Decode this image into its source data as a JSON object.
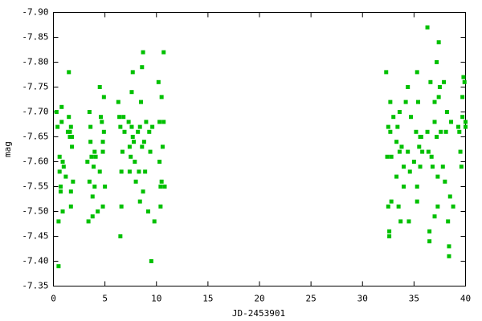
{
  "chart_data": {
    "type": "scatter",
    "xlabel": "JD-2453901",
    "ylabel": "mag",
    "color": "#00c000",
    "xlim": [
      0,
      40
    ],
    "xticks": [
      0,
      5,
      10,
      15,
      20,
      25,
      30,
      35,
      40
    ],
    "ylim": [
      -7.35,
      -7.9
    ],
    "yticks": [
      {
        "value": -7.9,
        "label": "-7.90"
      },
      -7.85,
      {
        "value": -7.8,
        "label": "-7.80"
      },
      -7.75,
      {
        "value": -7.7,
        "label": "-7.70"
      },
      -7.65,
      {
        "value": -7.6,
        "label": "-7.60"
      },
      -7.55,
      {
        "value": -7.5,
        "label": "-7.50"
      },
      -7.45,
      {
        "value": -7.4,
        "label": "-7.40"
      },
      -7.35
    ],
    "x": [
      0.3,
      0.4,
      0.5,
      0.5,
      0.6,
      0.6,
      0.7,
      0.7,
      0.8,
      0.8,
      0.9,
      0.9,
      1.0,
      1.2,
      1.4,
      1.5,
      1.5,
      1.6,
      1.6,
      1.7,
      1.7,
      1.8,
      1.8,
      1.9,
      1.7,
      3.3,
      3.4,
      3.5,
      3.5,
      3.6,
      3.6,
      3.7,
      3.8,
      3.8,
      3.9,
      4.0,
      4.0,
      4.1,
      4.3,
      4.5,
      4.5,
      4.6,
      4.7,
      4.8,
      4.8,
      4.8,
      4.9,
      4.9,
      5.0,
      6.3,
      6.4,
      6.5,
      6.5,
      6.6,
      6.6,
      6.7,
      6.8,
      6.9,
      7.3,
      7.4,
      7.4,
      7.5,
      7.6,
      7.6,
      7.7,
      7.7,
      7.8,
      7.9,
      8.0,
      8.2,
      8.3,
      8.4,
      8.4,
      8.5,
      8.6,
      8.6,
      8.7,
      8.7,
      8.8,
      8.9,
      9.0,
      9.2,
      9.3,
      9.4,
      9.5,
      9.6,
      9.8,
      10.2,
      10.3,
      10.3,
      10.4,
      10.4,
      10.5,
      10.5,
      10.6,
      10.7,
      10.7,
      10.8,
      32.3,
      32.4,
      32.5,
      32.5,
      32.6,
      32.6,
      32.7,
      32.7,
      32.8,
      32.8,
      33.0,
      33.3,
      33.3,
      33.4,
      33.5,
      33.6,
      33.6,
      33.7,
      33.8,
      34.0,
      34.0,
      34.2,
      34.4,
      34.4,
      34.5,
      34.6,
      34.7,
      35.0,
      35.2,
      35.3,
      35.3,
      35.3,
      35.4,
      35.5,
      35.6,
      35.6,
      35.7,
      35.8,
      36.3,
      36.3,
      36.4,
      36.5,
      36.5,
      36.6,
      36.7,
      36.8,
      37.0,
      37.0,
      37.0,
      37.2,
      37.2,
      37.3,
      37.3,
      37.4,
      37.4,
      37.5,
      37.6,
      37.8,
      37.9,
      38.0,
      38.1,
      38.2,
      38.3,
      38.4,
      38.4,
      38.5,
      38.6,
      38.8,
      39.3,
      39.4,
      39.5,
      39.6,
      39.7,
      39.7,
      39.8,
      39.9,
      40.0,
      40.0
    ],
    "values": [
      -7.7,
      -7.67,
      -7.48,
      -7.39,
      -7.58,
      -7.61,
      -7.55,
      -7.54,
      -7.71,
      -7.68,
      -7.6,
      -7.5,
      -7.59,
      -7.57,
      -7.66,
      -7.78,
      -7.69,
      -7.65,
      -7.66,
      -7.54,
      -7.51,
      -7.65,
      -7.63,
      -7.56,
      -7.67,
      -7.6,
      -7.48,
      -7.56,
      -7.7,
      -7.64,
      -7.67,
      -7.61,
      -7.49,
      -7.53,
      -7.59,
      -7.55,
      -7.62,
      -7.61,
      -7.5,
      -7.75,
      -7.58,
      -7.69,
      -7.68,
      -7.64,
      -7.62,
      -7.51,
      -7.73,
      -7.66,
      -7.55,
      -7.72,
      -7.69,
      -7.67,
      -7.45,
      -7.58,
      -7.51,
      -7.62,
      -7.69,
      -7.66,
      -7.68,
      -7.63,
      -7.58,
      -7.61,
      -7.74,
      -7.67,
      -7.78,
      -7.65,
      -7.64,
      -7.6,
      -7.56,
      -7.66,
      -7.58,
      -7.67,
      -7.52,
      -7.72,
      -7.79,
      -7.63,
      -7.82,
      -7.54,
      -7.64,
      -7.58,
      -7.68,
      -7.5,
      -7.66,
      -7.62,
      -7.4,
      -7.67,
      -7.48,
      -7.76,
      -7.68,
      -7.6,
      -7.55,
      -7.51,
      -7.73,
      -7.56,
      -7.63,
      -7.82,
      -7.68,
      -7.55,
      -7.78,
      -7.61,
      -7.67,
      -7.51,
      -7.46,
      -7.45,
      -7.72,
      -7.66,
      -7.61,
      -7.52,
      -7.69,
      -7.64,
      -7.57,
      -7.67,
      -7.51,
      -7.7,
      -7.62,
      -7.48,
      -7.63,
      -7.59,
      -7.55,
      -7.72,
      -7.75,
      -7.62,
      -7.48,
      -7.58,
      -7.69,
      -7.6,
      -7.66,
      -7.78,
      -7.52,
      -7.55,
      -7.72,
      -7.63,
      -7.65,
      -7.59,
      -7.65,
      -7.62,
      -7.87,
      -7.66,
      -7.62,
      -7.44,
      -7.46,
      -7.76,
      -7.61,
      -7.59,
      -7.72,
      -7.68,
      -7.49,
      -7.8,
      -7.65,
      -7.57,
      -7.51,
      -7.84,
      -7.73,
      -7.75,
      -7.66,
      -7.59,
      -7.76,
      -7.56,
      -7.66,
      -7.7,
      -7.48,
      -7.43,
      -7.41,
      -7.53,
      -7.68,
      -7.51,
      -7.67,
      -7.66,
      -7.62,
      -7.59,
      -7.73,
      -7.69,
      -7.77,
      -7.76,
      -7.67,
      -7.68
    ]
  }
}
